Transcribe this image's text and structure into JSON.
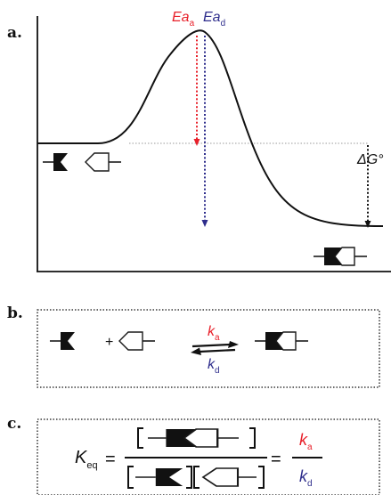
{
  "panel_a": {
    "label": "a.",
    "activation_energy_association": {
      "symbol": "Ea",
      "subscript": "a"
    },
    "activation_energy_dissociation": {
      "symbol": "Ea",
      "subscript": "d"
    },
    "free_energy": {
      "symbol": "ΔG°"
    }
  },
  "panel_b": {
    "label": "b.",
    "plus": "+",
    "rate_forward": {
      "symbol": "k",
      "subscript": "a"
    },
    "rate_reverse": {
      "symbol": "k",
      "subscript": "d"
    }
  },
  "panel_c": {
    "label": "c.",
    "constant": {
      "symbol": "K",
      "subscript": "eq"
    },
    "equals": "=",
    "rate_numerator": {
      "symbol": "k",
      "subscript": "a"
    },
    "rate_denominator": {
      "symbol": "k",
      "subscript": "d"
    }
  },
  "colors": {
    "association": "#e8202a",
    "dissociation": "#2e2d8c",
    "ink": "#1a1a1a",
    "baseline_dotted": "#9a9a9a"
  }
}
